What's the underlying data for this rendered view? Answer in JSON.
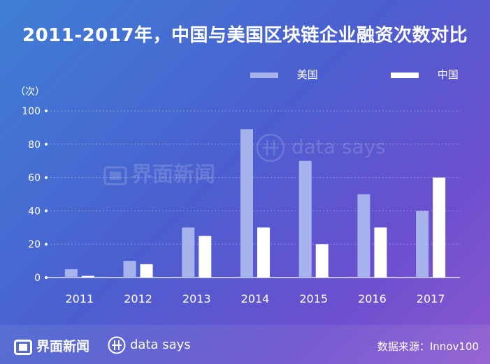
{
  "title": "2011-2017年，中国与美国区块链企业融资次数对比",
  "unit_label": "（次）",
  "watermarks": {
    "jiemian": "界面新闻",
    "datasays": "data says"
  },
  "footer": {
    "brand_jiemian": "界面新闻",
    "brand_datasays": "data says",
    "source": "数据来源：Innov100"
  },
  "colors": {
    "us": "#a6b3ec",
    "cn": "#ffffff"
  },
  "chart_data": {
    "type": "bar",
    "title": "2011-2017年，中国与美国区块链企业融资次数对比",
    "ylabel": "（次）",
    "categories": [
      "2011",
      "2012",
      "2013",
      "2014",
      "2015",
      "2016",
      "2017"
    ],
    "series": [
      {
        "name": "美国",
        "values": [
          5,
          10,
          30,
          89,
          70,
          50,
          40
        ]
      },
      {
        "name": "中国",
        "values": [
          1,
          8,
          25,
          30,
          20,
          30,
          60
        ]
      }
    ],
    "ylim": [
      0,
      100
    ],
    "yticks": [
      "0",
      "20",
      "40",
      "60",
      "80",
      "100"
    ],
    "grid": true,
    "legend_position": "top-right"
  }
}
